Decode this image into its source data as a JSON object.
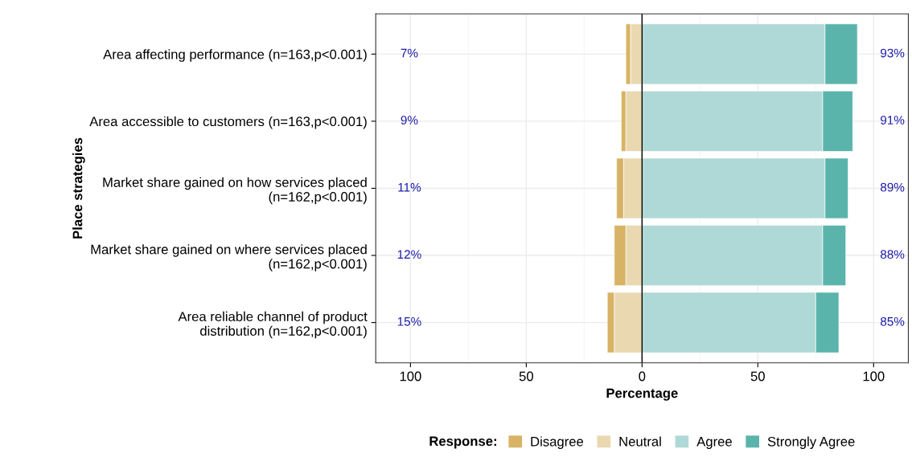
{
  "chart_data": {
    "type": "bar",
    "orientation": "horizontal",
    "stacked": true,
    "categories": [
      "Area affecting performance (n=163,p<0.001)",
      "Area accessible to customers (n=163,p<0.001)",
      "Market share gained on how services placed\n(n=162,p<0.001)",
      "Market share gained on where services placed\n(n=162,p<0.001)",
      "Area reliable channel of product\ndistribution (n=162,p<0.001)"
    ],
    "series": [
      {
        "name": "Neutral",
        "color": "#ead8b1",
        "values": [
          -5,
          -7,
          -8,
          -7,
          -12
        ]
      },
      {
        "name": "Disagree",
        "color": "#d8b365",
        "values": [
          -2,
          -2,
          -3,
          -5,
          -3
        ]
      },
      {
        "name": "Agree",
        "color": "#afd9d6",
        "values": [
          79,
          78,
          79,
          78,
          75
        ]
      },
      {
        "name": "Strongly Agree",
        "color": "#5ab4ac",
        "values": [
          14,
          13,
          10,
          10,
          10
        ]
      }
    ],
    "xlim": [
      -115,
      115
    ],
    "xticks": [
      {
        "value": -100,
        "label": "100"
      },
      {
        "value": -50,
        "label": "50"
      },
      0,
      50,
      100
    ],
    "ref_lines": [
      {
        "axis": "x",
        "value": 0,
        "color": "#000000",
        "line_style": "solid"
      }
    ],
    "xlabel": "Percentage",
    "ylabel": "Place strategies",
    "legend_title": "Response:",
    "legend": "bottom",
    "grid": true,
    "annotations": [
      "7%",
      "9%",
      "11%",
      "12%",
      "15%",
      "93%",
      "91%",
      "89%",
      "88%",
      "85%"
    ]
  }
}
